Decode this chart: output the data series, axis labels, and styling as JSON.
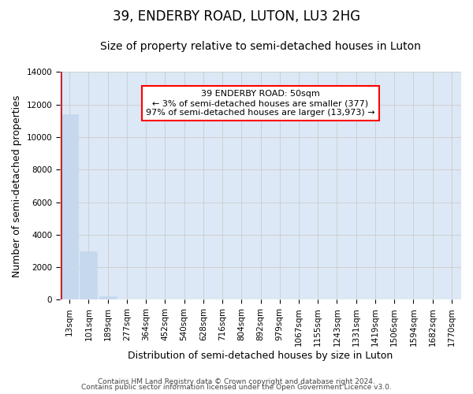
{
  "title": "39, ENDERBY ROAD, LUTON, LU3 2HG",
  "subtitle": "Size of property relative to semi-detached houses in Luton",
  "xlabel": "Distribution of semi-detached houses by size in Luton",
  "ylabel": "Number of semi-detached properties",
  "footer_line1": "Contains HM Land Registry data © Crown copyright and database right 2024.",
  "footer_line2": "Contains public sector information licensed under the Open Government Licence v3.0.",
  "bar_labels": [
    "13sqm",
    "101sqm",
    "189sqm",
    "277sqm",
    "364sqm",
    "452sqm",
    "540sqm",
    "628sqm",
    "716sqm",
    "804sqm",
    "892sqm",
    "979sqm",
    "1067sqm",
    "1155sqm",
    "1243sqm",
    "1331sqm",
    "1419sqm",
    "1506sqm",
    "1594sqm",
    "1682sqm",
    "1770sqm"
  ],
  "bar_values": [
    11400,
    3000,
    200,
    0,
    0,
    0,
    0,
    0,
    0,
    0,
    0,
    0,
    0,
    0,
    0,
    0,
    0,
    0,
    0,
    0,
    0
  ],
  "bar_color": "#c5d8ee",
  "bar_edge_color": "#c5d8ee",
  "red_line_x": -0.42,
  "annotation_text": "39 ENDERBY ROAD: 50sqm\n← 3% of semi-detached houses are smaller (377)\n97% of semi-detached houses are larger (13,973) →",
  "annotation_box_color": "white",
  "annotation_box_edge_color": "red",
  "red_line_color": "#cc0000",
  "ylim": [
    0,
    14000
  ],
  "yticks": [
    0,
    2000,
    4000,
    6000,
    8000,
    10000,
    12000,
    14000
  ],
  "grid_color": "#cccccc",
  "background_color": "#dce8f5",
  "title_fontsize": 12,
  "subtitle_fontsize": 10,
  "axis_label_fontsize": 9,
  "tick_fontsize": 7.5,
  "annotation_fontsize": 8,
  "footer_fontsize": 6.5
}
